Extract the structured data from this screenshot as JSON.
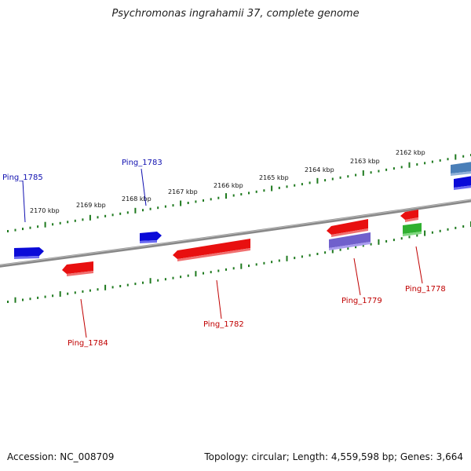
{
  "title": "Psychromonas ingrahamii 37, complete genome",
  "footer": {
    "accession": "Accession: NC_008709",
    "summary": "Topology: circular; Length: 4,559,598 bp; Genes: 3,664"
  },
  "tick_labels": [
    "2170 kbp",
    "2169 kbp",
    "2168 kbp",
    "2167 kbp",
    "2166 kbp",
    "2165 kbp",
    "2164 kbp",
    "2163 kbp",
    "2162 kbp"
  ],
  "gene_labels": {
    "ping_1785": "Ping_1785",
    "ping_1783": "Ping_1783",
    "ping_1784": "Ping_1784",
    "ping_1782": "Ping_1782",
    "ping_1779": "Ping_1779",
    "ping_1778": "Ping_1778"
  },
  "colors": {
    "forward_gene": "#0a0ad8",
    "reverse_gene": "#e81010",
    "rna_gene": "#7060cc",
    "other_gene": "#30b030",
    "misc_gene": "#4a7fb8",
    "backbone": "#808080",
    "tick": "#1f7a1f",
    "forward_label": "#1010b0",
    "reverse_label": "#c00000"
  }
}
